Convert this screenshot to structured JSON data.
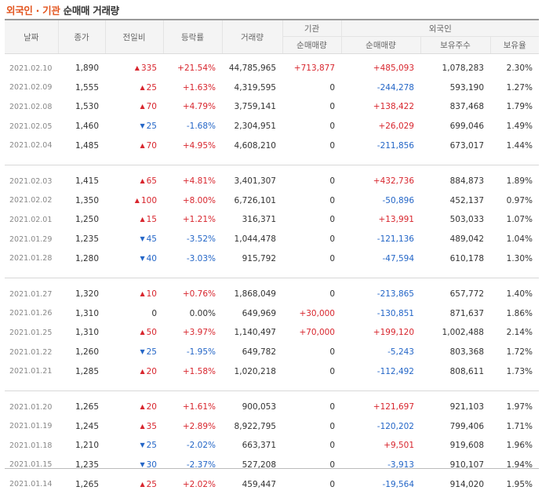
{
  "title": {
    "highlight": "외국인 · 기관",
    "rest": "순매매 거래량"
  },
  "headers": {
    "date": "날짜",
    "close": "종가",
    "change": "전일비",
    "rate": "등락률",
    "volume": "거래량",
    "inst": "기관",
    "inst_net": "순매매량",
    "foreign": "외국인",
    "foreign_net": "순매매량",
    "foreign_hold": "보유주수",
    "foreign_ratio": "보유율"
  },
  "colors": {
    "up": "#d8262e",
    "down": "#2466c7",
    "accent": "#e3551f"
  },
  "groups": [
    [
      {
        "date": "2021.02.10",
        "close": "1,890",
        "dir": "up",
        "change": "335",
        "rate": "+21.54%",
        "volume": "44,785,965",
        "inst": "+713,877",
        "inst_dir": "up",
        "foreign": "+485,093",
        "foreign_dir": "up",
        "hold": "1,078,283",
        "ratio": "2.30%"
      },
      {
        "date": "2021.02.09",
        "close": "1,555",
        "dir": "up",
        "change": "25",
        "rate": "+1.63%",
        "volume": "4,319,595",
        "inst": "0",
        "inst_dir": "flat",
        "foreign": "-244,278",
        "foreign_dir": "down",
        "hold": "593,190",
        "ratio": "1.27%"
      },
      {
        "date": "2021.02.08",
        "close": "1,530",
        "dir": "up",
        "change": "70",
        "rate": "+4.79%",
        "volume": "3,759,141",
        "inst": "0",
        "inst_dir": "flat",
        "foreign": "+138,422",
        "foreign_dir": "up",
        "hold": "837,468",
        "ratio": "1.79%"
      },
      {
        "date": "2021.02.05",
        "close": "1,460",
        "dir": "down",
        "change": "25",
        "rate": "-1.68%",
        "volume": "2,304,951",
        "inst": "0",
        "inst_dir": "flat",
        "foreign": "+26,029",
        "foreign_dir": "up",
        "hold": "699,046",
        "ratio": "1.49%"
      },
      {
        "date": "2021.02.04",
        "close": "1,485",
        "dir": "up",
        "change": "70",
        "rate": "+4.95%",
        "volume": "4,608,210",
        "inst": "0",
        "inst_dir": "flat",
        "foreign": "-211,856",
        "foreign_dir": "down",
        "hold": "673,017",
        "ratio": "1.44%"
      }
    ],
    [
      {
        "date": "2021.02.03",
        "close": "1,415",
        "dir": "up",
        "change": "65",
        "rate": "+4.81%",
        "volume": "3,401,307",
        "inst": "0",
        "inst_dir": "flat",
        "foreign": "+432,736",
        "foreign_dir": "up",
        "hold": "884,873",
        "ratio": "1.89%"
      },
      {
        "date": "2021.02.02",
        "close": "1,350",
        "dir": "up",
        "change": "100",
        "rate": "+8.00%",
        "volume": "6,726,101",
        "inst": "0",
        "inst_dir": "flat",
        "foreign": "-50,896",
        "foreign_dir": "down",
        "hold": "452,137",
        "ratio": "0.97%"
      },
      {
        "date": "2021.02.01",
        "close": "1,250",
        "dir": "up",
        "change": "15",
        "rate": "+1.21%",
        "volume": "316,371",
        "inst": "0",
        "inst_dir": "flat",
        "foreign": "+13,991",
        "foreign_dir": "up",
        "hold": "503,033",
        "ratio": "1.07%"
      },
      {
        "date": "2021.01.29",
        "close": "1,235",
        "dir": "down",
        "change": "45",
        "rate": "-3.52%",
        "volume": "1,044,478",
        "inst": "0",
        "inst_dir": "flat",
        "foreign": "-121,136",
        "foreign_dir": "down",
        "hold": "489,042",
        "ratio": "1.04%"
      },
      {
        "date": "2021.01.28",
        "close": "1,280",
        "dir": "down",
        "change": "40",
        "rate": "-3.03%",
        "volume": "915,792",
        "inst": "0",
        "inst_dir": "flat",
        "foreign": "-47,594",
        "foreign_dir": "down",
        "hold": "610,178",
        "ratio": "1.30%"
      }
    ],
    [
      {
        "date": "2021.01.27",
        "close": "1,320",
        "dir": "up",
        "change": "10",
        "rate": "+0.76%",
        "volume": "1,868,049",
        "inst": "0",
        "inst_dir": "flat",
        "foreign": "-213,865",
        "foreign_dir": "down",
        "hold": "657,772",
        "ratio": "1.40%"
      },
      {
        "date": "2021.01.26",
        "close": "1,310",
        "dir": "flat",
        "change": "0",
        "rate": "0.00%",
        "volume": "649,969",
        "inst": "+30,000",
        "inst_dir": "up",
        "foreign": "-130,851",
        "foreign_dir": "down",
        "hold": "871,637",
        "ratio": "1.86%"
      },
      {
        "date": "2021.01.25",
        "close": "1,310",
        "dir": "up",
        "change": "50",
        "rate": "+3.97%",
        "volume": "1,140,497",
        "inst": "+70,000",
        "inst_dir": "up",
        "foreign": "+199,120",
        "foreign_dir": "up",
        "hold": "1,002,488",
        "ratio": "2.14%"
      },
      {
        "date": "2021.01.22",
        "close": "1,260",
        "dir": "down",
        "change": "25",
        "rate": "-1.95%",
        "volume": "649,782",
        "inst": "0",
        "inst_dir": "flat",
        "foreign": "-5,243",
        "foreign_dir": "down",
        "hold": "803,368",
        "ratio": "1.72%"
      },
      {
        "date": "2021.01.21",
        "close": "1,285",
        "dir": "up",
        "change": "20",
        "rate": "+1.58%",
        "volume": "1,020,218",
        "inst": "0",
        "inst_dir": "flat",
        "foreign": "-112,492",
        "foreign_dir": "down",
        "hold": "808,611",
        "ratio": "1.73%"
      }
    ],
    [
      {
        "date": "2021.01.20",
        "close": "1,265",
        "dir": "up",
        "change": "20",
        "rate": "+1.61%",
        "volume": "900,053",
        "inst": "0",
        "inst_dir": "flat",
        "foreign": "+121,697",
        "foreign_dir": "up",
        "hold": "921,103",
        "ratio": "1.97%"
      },
      {
        "date": "2021.01.19",
        "close": "1,245",
        "dir": "up",
        "change": "35",
        "rate": "+2.89%",
        "volume": "8,922,795",
        "inst": "0",
        "inst_dir": "flat",
        "foreign": "-120,202",
        "foreign_dir": "down",
        "hold": "799,406",
        "ratio": "1.71%"
      },
      {
        "date": "2021.01.18",
        "close": "1,210",
        "dir": "down",
        "change": "25",
        "rate": "-2.02%",
        "volume": "663,371",
        "inst": "0",
        "inst_dir": "flat",
        "foreign": "+9,501",
        "foreign_dir": "up",
        "hold": "919,608",
        "ratio": "1.96%"
      },
      {
        "date": "2021.01.15",
        "close": "1,235",
        "dir": "down",
        "change": "30",
        "rate": "-2.37%",
        "volume": "527,208",
        "inst": "0",
        "inst_dir": "flat",
        "foreign": "-3,913",
        "foreign_dir": "down",
        "hold": "910,107",
        "ratio": "1.94%"
      },
      {
        "date": "2021.01.14",
        "close": "1,265",
        "dir": "up",
        "change": "25",
        "rate": "+2.02%",
        "volume": "459,447",
        "inst": "0",
        "inst_dir": "flat",
        "foreign": "-19,564",
        "foreign_dir": "down",
        "hold": "914,020",
        "ratio": "1.95%"
      }
    ]
  ]
}
